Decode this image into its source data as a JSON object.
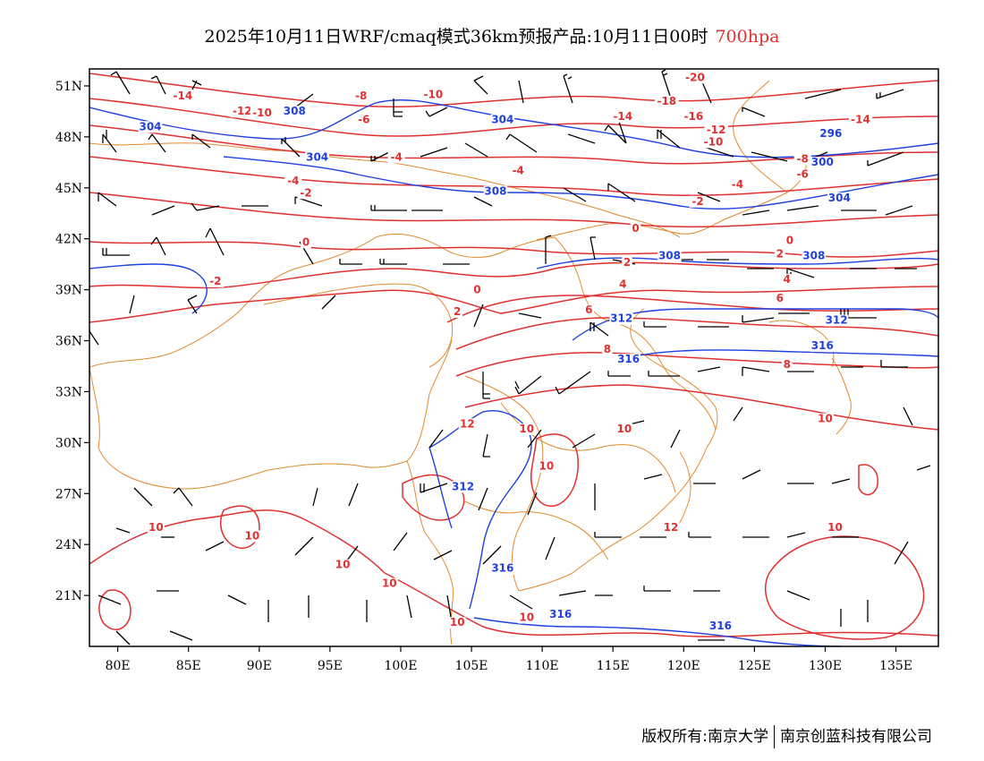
{
  "title": {
    "main": "2025年10月11日WRF/cmaq模式36km预报产品:10月11日00时",
    "level": "700hpa"
  },
  "footer": {
    "copyright": "版权所有:南京大学",
    "company": "南京创蓝科技有限公司"
  },
  "map": {
    "lon_range": [
      78,
      138
    ],
    "lat_range": [
      18,
      52
    ],
    "x_ticks": [
      {
        "lon": 80,
        "label": "80E"
      },
      {
        "lon": 85,
        "label": "85E"
      },
      {
        "lon": 90,
        "label": "90E"
      },
      {
        "lon": 95,
        "label": "95E"
      },
      {
        "lon": 100,
        "label": "100E"
      },
      {
        "lon": 105,
        "label": "105E"
      },
      {
        "lon": 110,
        "label": "110E"
      },
      {
        "lon": 115,
        "label": "115E"
      },
      {
        "lon": 120,
        "label": "120E"
      },
      {
        "lon": 125,
        "label": "125E"
      },
      {
        "lon": 130,
        "label": "130E"
      },
      {
        "lon": 135,
        "label": "135E"
      }
    ],
    "y_ticks": [
      {
        "lat": 51,
        "label": "51N"
      },
      {
        "lat": 48,
        "label": "48N"
      },
      {
        "lat": 45,
        "label": "45N"
      },
      {
        "lat": 42,
        "label": "42N"
      },
      {
        "lat": 39,
        "label": "39N"
      },
      {
        "lat": 36,
        "label": "36N"
      },
      {
        "lat": 33,
        "label": "33N"
      },
      {
        "lat": 30,
        "label": "30N"
      },
      {
        "lat": 27,
        "label": "27N"
      },
      {
        "lat": 24,
        "label": "24N"
      },
      {
        "lat": 21,
        "label": "21N"
      }
    ],
    "colors": {
      "temperature": "#e03030",
      "height": "#2040e0",
      "border": "#e08a30",
      "wind": "#000000"
    },
    "temperature_labels": [
      {
        "text": "-20",
        "lon": 120.8,
        "lat": 51.3
      },
      {
        "text": "-14",
        "lon": 84.6,
        "lat": 50.2
      },
      {
        "text": "-12",
        "lon": 88.8,
        "lat": 49.3
      },
      {
        "text": "-10",
        "lon": 90.2,
        "lat": 49.2
      },
      {
        "text": "-8",
        "lon": 97.2,
        "lat": 50.2
      },
      {
        "text": "-6",
        "lon": 97.4,
        "lat": 48.8
      },
      {
        "text": "-10",
        "lon": 102.3,
        "lat": 50.3
      },
      {
        "text": "-18",
        "lon": 118.8,
        "lat": 49.9
      },
      {
        "text": "-14",
        "lon": 115.7,
        "lat": 49.0
      },
      {
        "text": "-16",
        "lon": 120.7,
        "lat": 49.0
      },
      {
        "text": "-14",
        "lon": 132.5,
        "lat": 48.8
      },
      {
        "text": "-12",
        "lon": 122.3,
        "lat": 48.2
      },
      {
        "text": "-10",
        "lon": 122.1,
        "lat": 47.5
      },
      {
        "text": "-4",
        "lon": 99.7,
        "lat": 46.6
      },
      {
        "text": "-8",
        "lon": 128.4,
        "lat": 46.5
      },
      {
        "text": "-4",
        "lon": 108.3,
        "lat": 45.8
      },
      {
        "text": "-6",
        "lon": 128.4,
        "lat": 45.6
      },
      {
        "text": "-4",
        "lon": 92.4,
        "lat": 45.2
      },
      {
        "text": "-4",
        "lon": 123.8,
        "lat": 45.0
      },
      {
        "text": "-2",
        "lon": 93.3,
        "lat": 44.5
      },
      {
        "text": "-2",
        "lon": 121.0,
        "lat": 44.0
      },
      {
        "text": "0",
        "lon": 93.3,
        "lat": 41.6
      },
      {
        "text": "0",
        "lon": 116.6,
        "lat": 42.4
      },
      {
        "text": "0",
        "lon": 127.5,
        "lat": 41.7
      },
      {
        "text": "-2",
        "lon": 86.9,
        "lat": 39.3
      },
      {
        "text": "2",
        "lon": 116.0,
        "lat": 40.4
      },
      {
        "text": "2",
        "lon": 126.8,
        "lat": 40.9
      },
      {
        "text": "0",
        "lon": 105.4,
        "lat": 38.8
      },
      {
        "text": "4",
        "lon": 115.7,
        "lat": 39.1
      },
      {
        "text": "4",
        "lon": 127.3,
        "lat": 39.4
      },
      {
        "text": "2",
        "lon": 104.0,
        "lat": 37.5
      },
      {
        "text": "6",
        "lon": 126.8,
        "lat": 38.3
      },
      {
        "text": "6",
        "lon": 113.3,
        "lat": 37.6
      },
      {
        "text": "8",
        "lon": 114.6,
        "lat": 35.3
      },
      {
        "text": "8",
        "lon": 127.3,
        "lat": 34.4
      },
      {
        "text": "12",
        "lon": 104.7,
        "lat": 30.9
      },
      {
        "text": "10",
        "lon": 108.9,
        "lat": 30.6
      },
      {
        "text": "10",
        "lon": 115.8,
        "lat": 30.6
      },
      {
        "text": "10",
        "lon": 130.0,
        "lat": 31.2
      },
      {
        "text": "10",
        "lon": 110.3,
        "lat": 28.4
      },
      {
        "text": "10",
        "lon": 82.7,
        "lat": 24.8
      },
      {
        "text": "10",
        "lon": 89.5,
        "lat": 24.3
      },
      {
        "text": "12",
        "lon": 119.1,
        "lat": 24.8
      },
      {
        "text": "10",
        "lon": 130.7,
        "lat": 24.8
      },
      {
        "text": "10",
        "lon": 95.9,
        "lat": 22.6
      },
      {
        "text": "10",
        "lon": 99.2,
        "lat": 21.5
      },
      {
        "text": "10",
        "lon": 104.0,
        "lat": 19.2
      },
      {
        "text": "10",
        "lon": 108.9,
        "lat": 19.5
      }
    ],
    "height_labels": [
      {
        "text": "308",
        "lon": 92.5,
        "lat": 49.3
      },
      {
        "text": "304",
        "lon": 82.3,
        "lat": 48.4
      },
      {
        "text": "304",
        "lon": 107.2,
        "lat": 48.8
      },
      {
        "text": "296",
        "lon": 130.4,
        "lat": 48.0
      },
      {
        "text": "304",
        "lon": 94.1,
        "lat": 46.6
      },
      {
        "text": "300",
        "lon": 129.8,
        "lat": 46.3
      },
      {
        "text": "308",
        "lon": 106.7,
        "lat": 44.6
      },
      {
        "text": "304",
        "lon": 131.0,
        "lat": 44.2
      },
      {
        "text": "308",
        "lon": 119.0,
        "lat": 40.8
      },
      {
        "text": "308",
        "lon": 129.2,
        "lat": 40.8
      },
      {
        "text": "312",
        "lon": 115.6,
        "lat": 37.1
      },
      {
        "text": "312",
        "lon": 130.8,
        "lat": 37.0
      },
      {
        "text": "316",
        "lon": 129.8,
        "lat": 35.5
      },
      {
        "text": "316",
        "lon": 116.1,
        "lat": 34.7
      },
      {
        "text": "312",
        "lon": 104.4,
        "lat": 27.2
      },
      {
        "text": "316",
        "lon": 107.2,
        "lat": 22.4
      },
      {
        "text": "316",
        "lon": 111.3,
        "lat": 19.7
      },
      {
        "text": "316",
        "lon": 122.6,
        "lat": 19.0
      }
    ]
  }
}
